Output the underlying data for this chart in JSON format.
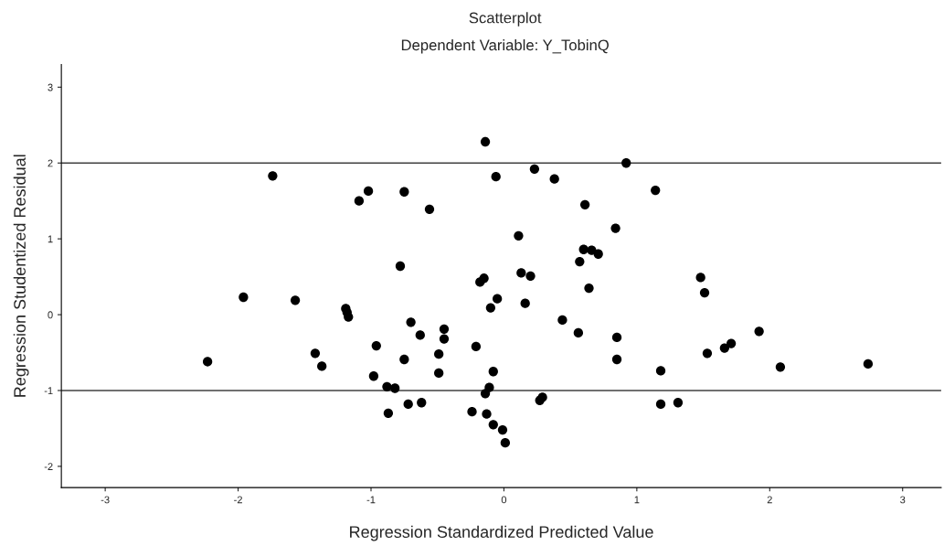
{
  "chart_data": {
    "type": "scatter",
    "title": "Scatterplot",
    "subtitle": "Dependent Variable: Y_TobinQ",
    "xlabel": "Regression Standardized Predicted Value",
    "ylabel": "Regression Studentized Residual",
    "x": [
      -1.74,
      -1.02,
      -1.09,
      -0.75,
      -0.56,
      -0.78,
      -1.96,
      -1.57,
      -1.19,
      -1.18,
      -1.17,
      -0.7,
      -0.63,
      -0.96,
      -1.42,
      -0.75,
      -2.23,
      -1.37,
      -0.98,
      -0.88,
      -0.82,
      -0.72,
      -0.62,
      -0.87,
      -0.14,
      0.92,
      -0.06,
      0.23,
      0.38,
      1.14,
      0.61,
      0.84,
      0.11,
      0.6,
      0.66,
      0.71,
      0.57,
      -0.18,
      -0.15,
      0.13,
      0.2,
      0.64,
      -0.05,
      -0.1,
      0.16,
      0.44,
      0.56,
      0.85,
      0.85,
      -0.45,
      -0.45,
      -0.49,
      -0.49,
      -0.21,
      -0.08,
      -0.11,
      -0.14,
      0.29,
      0.27,
      -0.24,
      -0.13,
      -0.08,
      -0.01,
      0.01,
      1.48,
      1.51,
      1.92,
      1.71,
      1.66,
      1.53,
      1.18,
      2.08,
      2.74,
      1.18,
      1.31
    ],
    "values": [
      1.83,
      1.63,
      1.5,
      1.62,
      1.39,
      0.64,
      0.23,
      0.19,
      0.08,
      0.03,
      -0.03,
      -0.1,
      -0.27,
      -0.41,
      -0.51,
      -0.59,
      -0.62,
      -0.68,
      -0.81,
      -0.95,
      -0.97,
      -1.18,
      -1.16,
      -1.3,
      2.28,
      2.0,
      1.82,
      1.92,
      1.79,
      1.64,
      1.45,
      1.14,
      1.04,
      0.86,
      0.85,
      0.8,
      0.7,
      0.43,
      0.48,
      0.55,
      0.51,
      0.35,
      0.21,
      0.09,
      0.15,
      -0.07,
      -0.24,
      -0.3,
      -0.59,
      -0.19,
      -0.32,
      -0.52,
      -0.77,
      -0.42,
      -0.75,
      -0.96,
      -1.04,
      -1.09,
      -1.13,
      -1.28,
      -1.31,
      -1.45,
      -1.52,
      -1.69,
      0.49,
      0.29,
      -0.22,
      -0.38,
      -0.44,
      -0.51,
      -0.74,
      -0.69,
      -0.65,
      -1.18,
      -1.16
    ],
    "color": "#000000",
    "marker": "circle",
    "xlim": [
      -3.33,
      3.29
    ],
    "ylim": [
      -2.28,
      3.3
    ],
    "xticks": [
      -3,
      -2,
      -1,
      0,
      1,
      2,
      3
    ],
    "yticks": [
      -2,
      -1,
      0,
      1,
      2,
      3
    ],
    "ref_lines": [
      {
        "axis": "y",
        "value": 2,
        "color": "#404040"
      },
      {
        "axis": "y",
        "value": -1,
        "color": "#404040"
      }
    ],
    "grid": false,
    "legend": false
  }
}
